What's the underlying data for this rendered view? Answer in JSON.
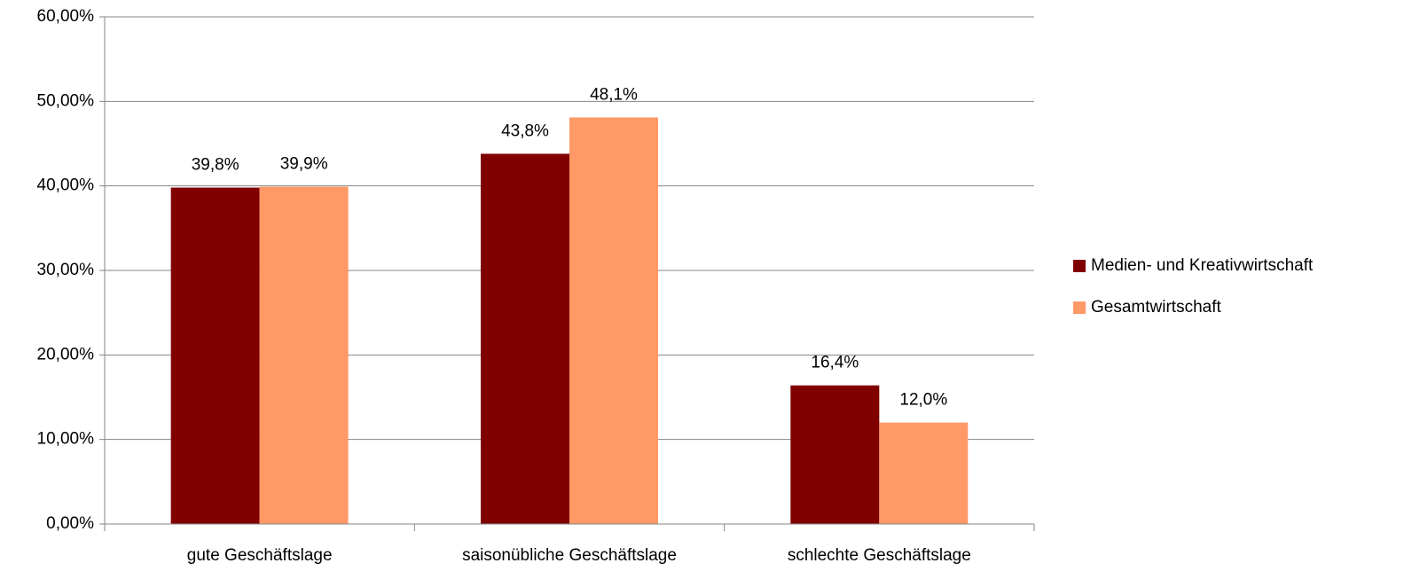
{
  "chart_data": {
    "type": "bar",
    "categories": [
      "gute Geschäftslage",
      "saisonübliche Geschäftslage",
      "schlechte Geschäftslage"
    ],
    "series": [
      {
        "name": "Medien- und Kreativwirtschaft",
        "color": "#800000",
        "values": [
          39.8,
          43.8,
          16.4
        ],
        "value_labels": [
          "39,8%",
          "43,8%",
          "16,4%"
        ]
      },
      {
        "name": "Gesamtwirtschaft",
        "color": "#ff9966",
        "values": [
          39.9,
          48.1,
          12.0
        ],
        "value_labels": [
          "39,9%",
          "48,1%",
          "12,0%"
        ]
      }
    ],
    "ylim": [
      0,
      60
    ],
    "yticks": [
      {
        "value": 0,
        "label": "0,00%"
      },
      {
        "value": 10,
        "label": "10,00%"
      },
      {
        "value": 20,
        "label": "20,00%"
      },
      {
        "value": 30,
        "label": "30,00%"
      },
      {
        "value": 40,
        "label": "40,00%"
      },
      {
        "value": 50,
        "label": "50,00%"
      },
      {
        "value": 60,
        "label": "60,00%"
      }
    ],
    "grid": true,
    "legend": "right"
  }
}
